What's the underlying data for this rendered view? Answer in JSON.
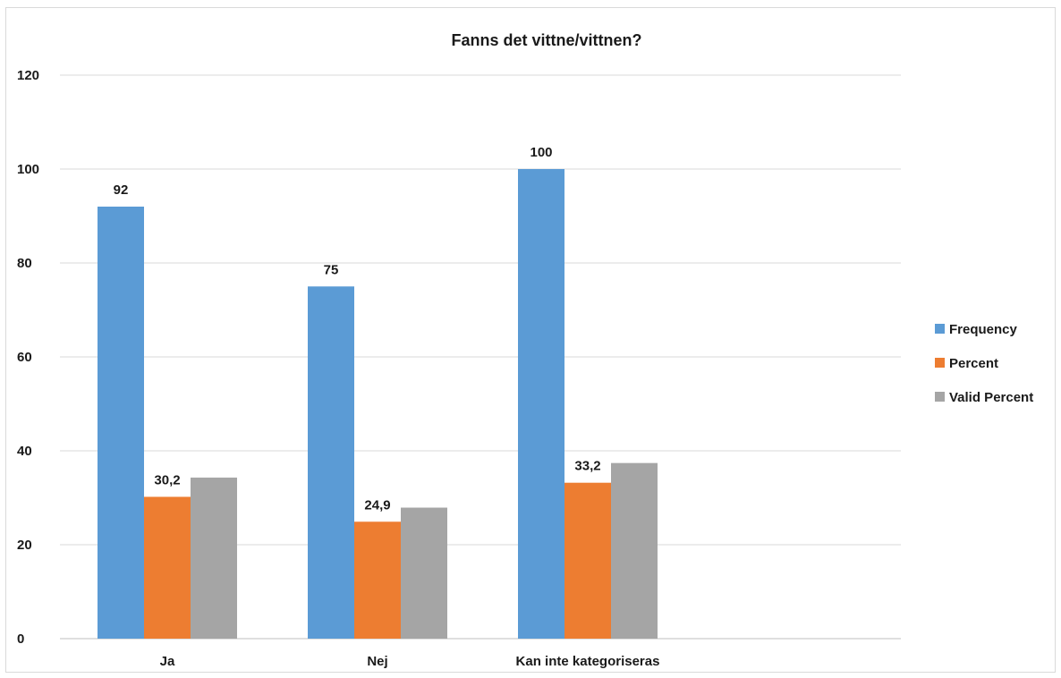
{
  "chart_data": {
    "type": "bar",
    "title": "Fanns det vittne/vittnen?",
    "xlabel": "",
    "ylabel": "",
    "categories": [
      "Ja",
      "Nej",
      "Kan inte kategoriseras"
    ],
    "series": [
      {
        "name": "Frequency",
        "color": "#5b9bd5",
        "values": [
          92,
          75,
          100
        ]
      },
      {
        "name": "Percent",
        "color": "#ed7d31",
        "values": [
          30.2,
          24.9,
          33.2
        ]
      },
      {
        "name": "Valid Percent",
        "color": "#a5a5a5",
        "values": [
          34.3,
          27.9,
          37.4
        ]
      }
    ],
    "data_labels": {
      "Frequency": [
        "92",
        "75",
        "100"
      ],
      "Percent": [
        "30,2",
        "24,9",
        "33,2"
      ],
      "Valid Percent": [
        "",
        "",
        ""
      ]
    },
    "ylim": [
      0,
      120
    ],
    "yticks": [
      0,
      20,
      40,
      60,
      80,
      100,
      120
    ],
    "grid": true,
    "legend_position": "right"
  }
}
